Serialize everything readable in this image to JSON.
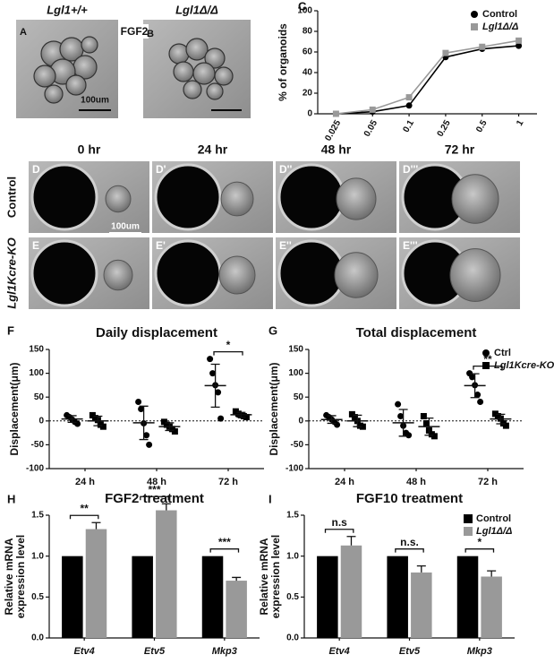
{
  "figure": {
    "top_images": {
      "treatment": "FGF2",
      "scale": "100um",
      "panels": [
        {
          "letter": "A",
          "label": "Lgl1+/+"
        },
        {
          "letter": "B",
          "label": "Lgl1Δ/Δ"
        }
      ]
    },
    "timelapse": {
      "times": [
        "0 hr",
        "24 hr",
        "48 hr",
        "72 hr"
      ],
      "scale": "100um",
      "rows": [
        {
          "label": "Control",
          "panels": [
            "D",
            "D'",
            "D''",
            "D'''"
          ]
        },
        {
          "label": "Lgl1Kcre-KO",
          "panels": [
            "E",
            "E'",
            "E''",
            "E'''"
          ]
        }
      ]
    }
  },
  "chart_data": [
    {
      "panel": "C",
      "type": "line",
      "ylabel": "% of organoids",
      "categories": [
        "0.025",
        "0.05",
        "0.1",
        "0.25",
        "0.5",
        "1"
      ],
      "ylim": [
        0,
        100
      ],
      "yticks": [
        0,
        20,
        40,
        60,
        80,
        100
      ],
      "legend": "top-right",
      "series": [
        {
          "name": "Control",
          "color": "#000000",
          "marker": "circle",
          "values": [
            0,
            2,
            8,
            55,
            63,
            66
          ]
        },
        {
          "name": "Lgl1Δ/Δ",
          "color": "#999999",
          "marker": "square",
          "values": [
            0,
            4,
            16,
            59,
            65,
            71
          ]
        }
      ]
    },
    {
      "panel": "F",
      "type": "strip",
      "title": "Daily displacement",
      "ylabel": "Displacement(μm)",
      "categories": [
        "24 h",
        "48 h",
        "72 h"
      ],
      "ylim": [
        -100,
        150
      ],
      "yticks": [
        -100,
        -50,
        0,
        50,
        100,
        150
      ],
      "zero_line": true,
      "significance": [
        null,
        null,
        "*"
      ],
      "series": [
        {
          "color": "#000000",
          "marker": "circle",
          "values": [
            [
              12,
              8,
              3,
              -2,
              -6
            ],
            [
              40,
              25,
              -5,
              -30,
              -50
            ],
            [
              130,
              100,
              75,
              60,
              5
            ]
          ],
          "means": [
            4,
            -4,
            74
          ],
          "errors": [
            7,
            35,
            45
          ]
        },
        {
          "color": "#000000",
          "marker": "square",
          "values": [
            [
              12,
              6,
              2,
              -8,
              -12
            ],
            [
              -2,
              -8,
              -12,
              -17,
              -22
            ],
            [
              20,
              15,
              12,
              10,
              8
            ]
          ],
          "means": [
            0,
            -12,
            13
          ],
          "errors": [
            10,
            8,
            5
          ]
        }
      ]
    },
    {
      "panel": "G",
      "type": "strip",
      "title": "Total displacement",
      "ylabel": "Displacement(μm)",
      "categories": [
        "24 h",
        "48 h",
        "72 h"
      ],
      "ylim": [
        -100,
        150
      ],
      "yticks": [
        -100,
        -50,
        0,
        50,
        100,
        150
      ],
      "zero_line": true,
      "significance": [
        null,
        null,
        "**"
      ],
      "legend": "top-right",
      "series": [
        {
          "name": "Ctrl",
          "color": "#000000",
          "marker": "circle",
          "values": [
            [
              12,
              8,
              3,
              -2,
              -8
            ],
            [
              35,
              10,
              -10,
              -25,
              -30
            ],
            [
              100,
              92,
              75,
              55,
              40
            ]
          ],
          "means": [
            3,
            -4,
            74
          ],
          "errors": [
            8,
            28,
            25
          ]
        },
        {
          "name": "Lgl1Kcre-KO",
          "color": "#000000",
          "marker": "square",
          "values": [
            [
              14,
              8,
              0,
              -10,
              -12
            ],
            [
              10,
              -5,
              -20,
              -28,
              -32
            ],
            [
              15,
              10,
              5,
              -5,
              -10
            ]
          ],
          "means": [
            0,
            -12,
            4
          ],
          "errors": [
            12,
            18,
            10
          ]
        }
      ]
    },
    {
      "panel": "H",
      "type": "bar",
      "title": "FGF2 treatment",
      "ylabel": [
        "Relative mRNA",
        "expression level"
      ],
      "categories": [
        "Etv4",
        "Etv5",
        "Mkp3"
      ],
      "ylim": [
        0,
        1.5
      ],
      "yticks": [
        {
          "value": 0,
          "label": "0.0"
        },
        {
          "value": 0.5,
          "label": "0.5"
        },
        {
          "value": 1,
          "label": "1.0"
        },
        {
          "value": 1.5,
          "label": "1.5"
        }
      ],
      "significance": [
        "**",
        "***",
        "***"
      ],
      "series": [
        {
          "color": "#000000",
          "values": [
            1,
            1,
            1
          ]
        },
        {
          "color": "#999999",
          "values": [
            1.33,
            1.56,
            0.7
          ],
          "errors": [
            0.08,
            0.08,
            0.04
          ]
        }
      ]
    },
    {
      "panel": "I",
      "type": "bar",
      "title": "FGF10 treatment",
      "ylabel": [
        "Relative mRNA",
        "expression level"
      ],
      "categories": [
        "Etv4",
        "Etv5",
        "Mkp3"
      ],
      "ylim": [
        0,
        1.5
      ],
      "yticks": [
        {
          "value": 0,
          "label": "0.0"
        },
        {
          "value": 0.5,
          "label": "0.5"
        },
        {
          "value": 1,
          "label": "1.0"
        },
        {
          "value": 1.5,
          "label": "1.5"
        }
      ],
      "significance": [
        "n.s",
        "n.s.",
        "*"
      ],
      "legend": "top-right",
      "series": [
        {
          "name": "Control",
          "color": "#000000",
          "values": [
            1,
            1,
            1
          ]
        },
        {
          "name": "Lgl1Δ/Δ",
          "color": "#999999",
          "values": [
            1.13,
            0.8,
            0.75
          ],
          "errors": [
            0.11,
            0.08,
            0.07
          ]
        }
      ]
    }
  ]
}
